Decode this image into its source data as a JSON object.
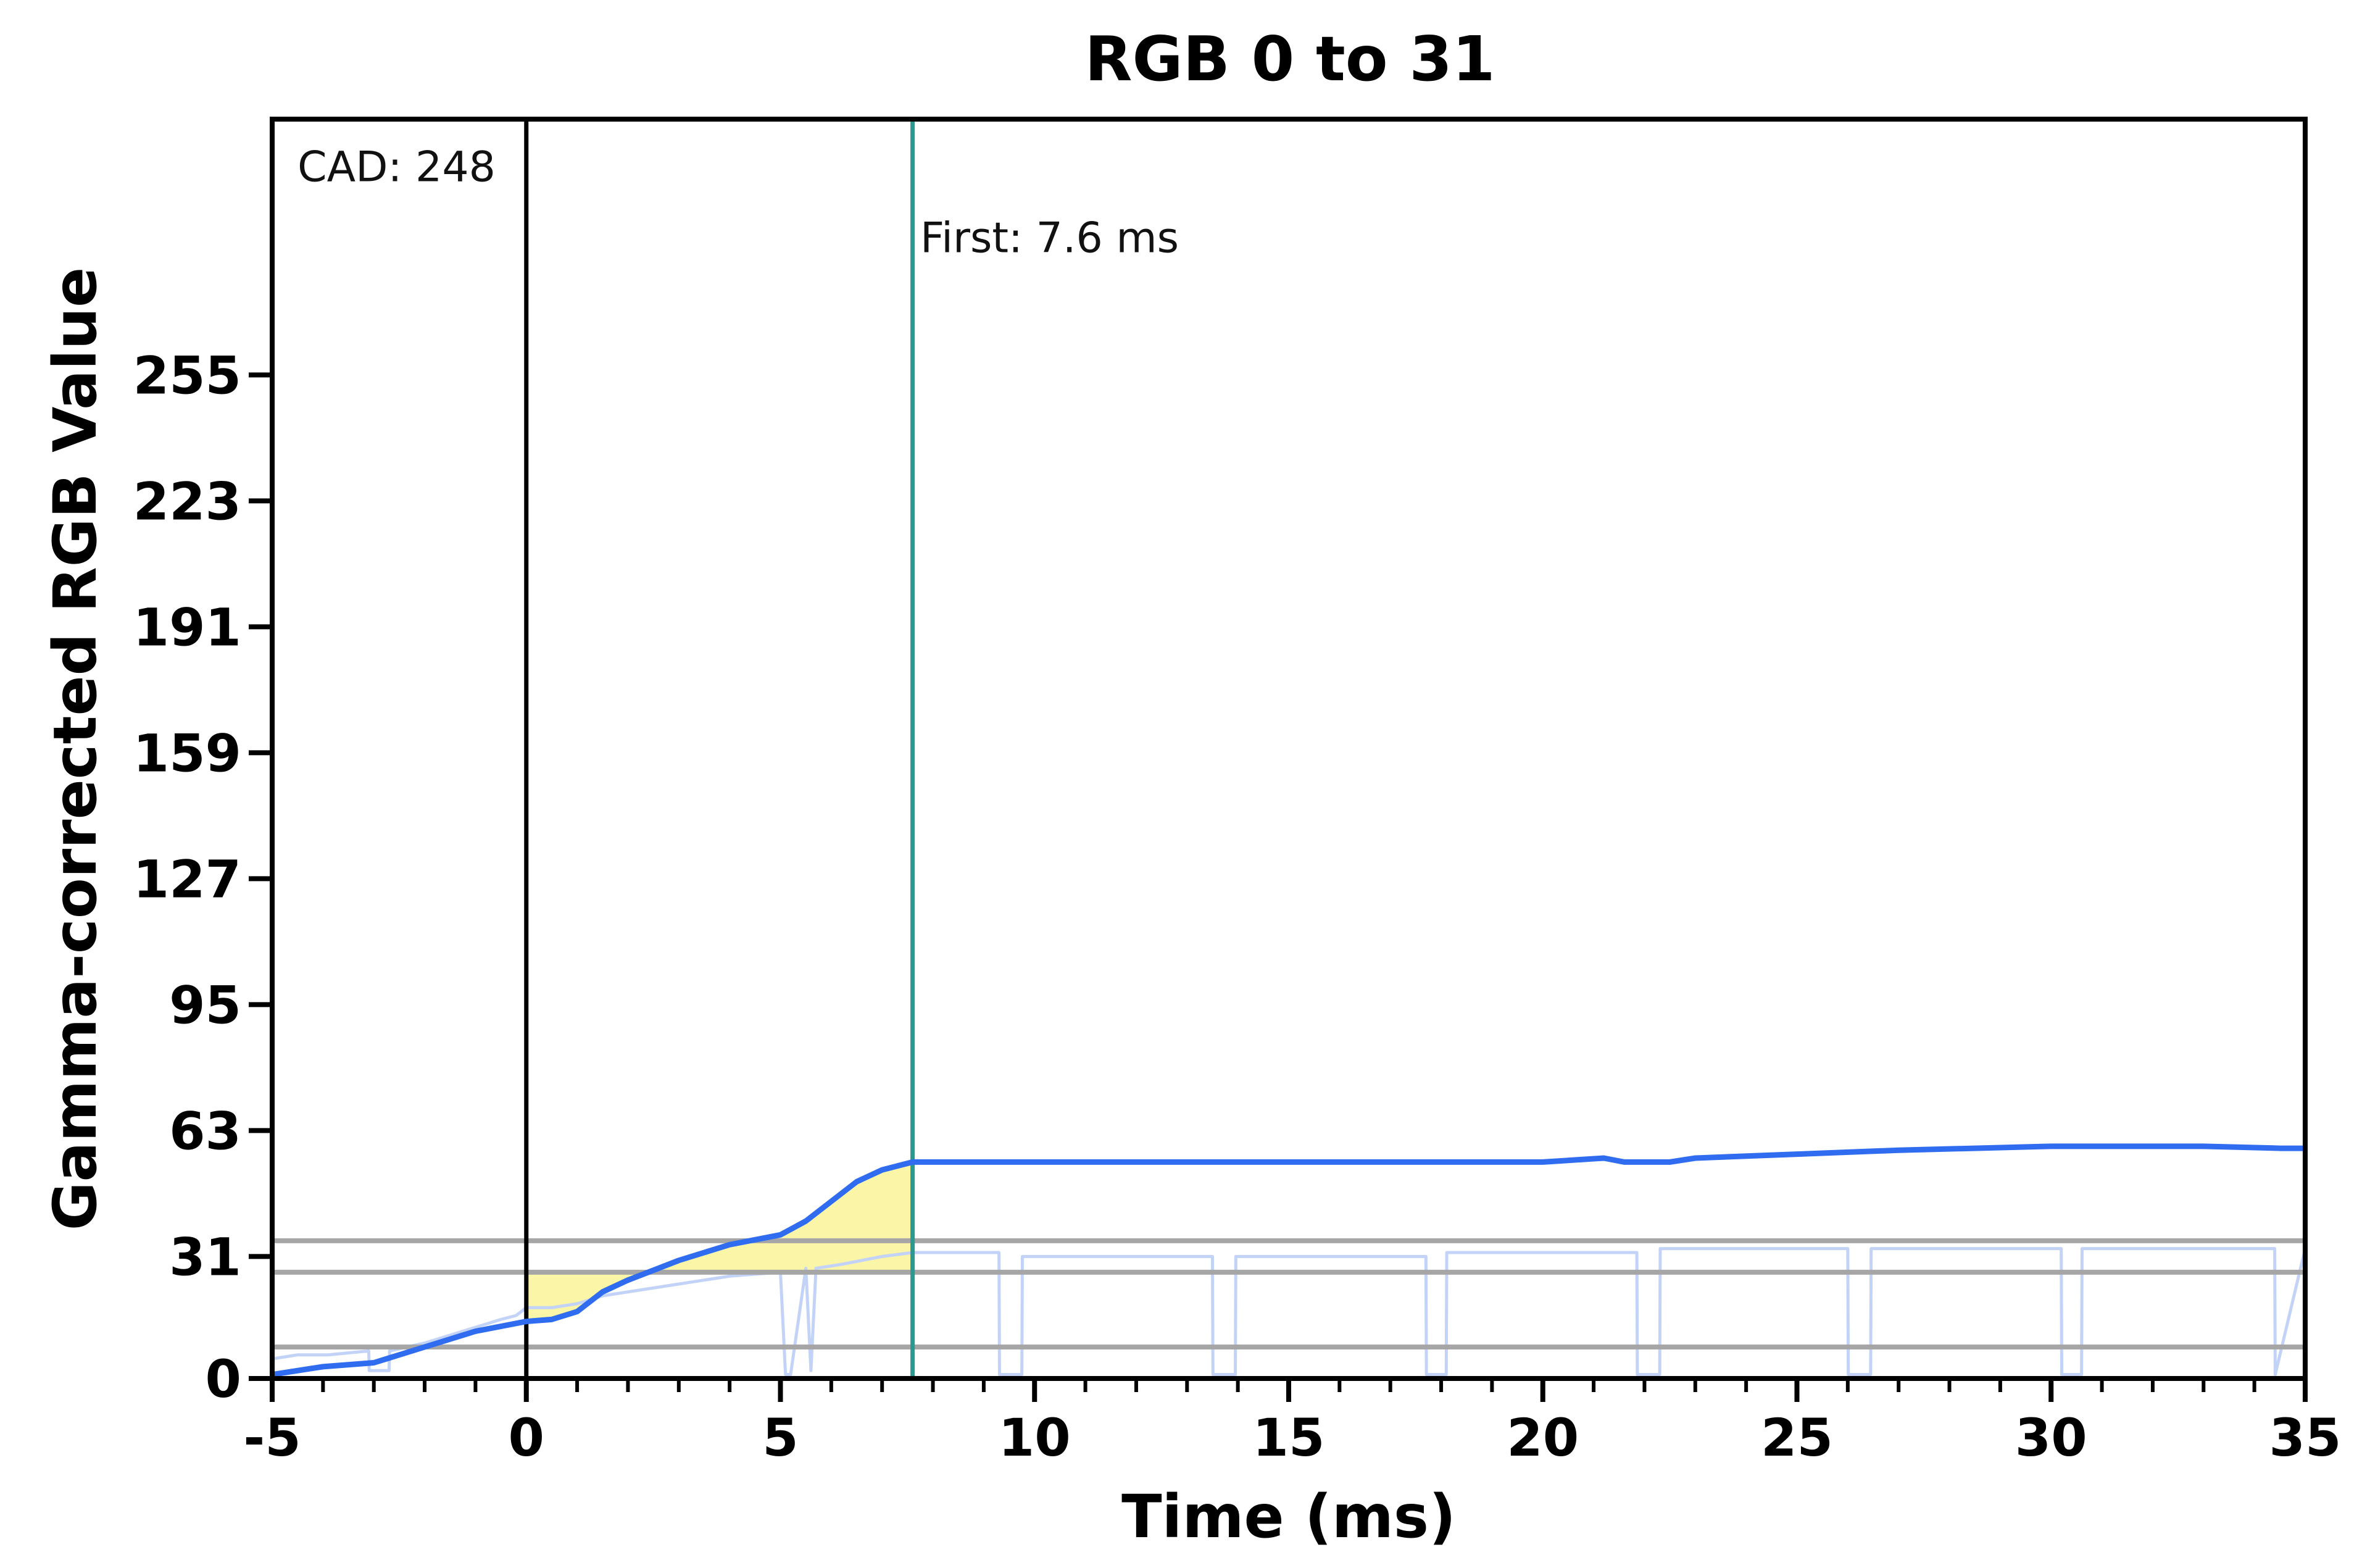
{
  "chart_data": {
    "type": "line",
    "title": "RGB 0 to 31",
    "xlabel": "Time (ms)",
    "ylabel": "Gamma-corrected RGB Value",
    "xlim": [
      -5,
      35
    ],
    "ylim": [
      0,
      320
    ],
    "x_ticks": [
      -5,
      0,
      5,
      10,
      15,
      20,
      25,
      30,
      35
    ],
    "y_ticks": [
      0,
      31,
      63,
      95,
      127,
      159,
      191,
      223,
      255
    ],
    "grid": false,
    "legend": "none",
    "reference_lines": {
      "horizontal": [
        8,
        27,
        35
      ],
      "start_marker_x": 0,
      "first_marker_x": 7.6
    },
    "annotations": [
      {
        "text": "CAD: 248",
        "x": -4.5,
        "y": 308
      },
      {
        "text": "First: 7.6 ms",
        "x": 7.75,
        "y": 290
      }
    ],
    "highlight_region": {
      "x_start": 0,
      "x_end": 7.6,
      "y_floor": 8,
      "y_ceiling": 27,
      "color": "#fbf5a8"
    },
    "series": [
      {
        "role": "raw-signal",
        "color": "#c2d3f7",
        "x": [
          -5,
          -4.5,
          -3.9,
          -3.1,
          -3.09,
          -2.7,
          -2.69,
          -2,
          -1.5,
          -1,
          -0.5,
          -0.2,
          0,
          0.5,
          1,
          1.5,
          2,
          3,
          4,
          5,
          5.1,
          5.2,
          5.5,
          5.6,
          5.7,
          6.2,
          7,
          7.6,
          9.3,
          9.31,
          9.75,
          9.76,
          13.5,
          13.51,
          13.95,
          13.96,
          17.7,
          17.71,
          18.1,
          18.11,
          21.85,
          21.86,
          22.3,
          22.31,
          26,
          26.01,
          26.45,
          26.46,
          30.2,
          30.21,
          30.6,
          30.61,
          34.4,
          34.41,
          35
        ],
        "y": [
          5,
          6,
          6,
          7,
          2,
          2,
          7,
          9,
          11,
          13,
          15,
          16,
          18,
          18,
          19,
          21,
          22,
          24,
          26,
          27,
          1,
          1,
          28,
          2,
          28,
          29,
          31,
          32,
          32,
          1,
          1,
          31,
          31,
          1,
          1,
          31,
          31,
          1,
          1,
          32,
          32,
          1,
          1,
          33,
          33,
          1,
          1,
          33,
          33,
          1,
          1,
          33,
          33,
          1,
          33
        ]
      },
      {
        "role": "smoothed",
        "color": "#2f6cf0",
        "x": [
          -5,
          -4,
          -3,
          -2,
          -1,
          0,
          0.5,
          1,
          1.5,
          2,
          3,
          4,
          5,
          5.5,
          6,
          6.5,
          7,
          7.6,
          8,
          10,
          12,
          14,
          16,
          18,
          20,
          21.2,
          21.6,
          22.5,
          23,
          25,
          27,
          30,
          33,
          34.5,
          35
        ],
        "y": [
          1,
          3,
          4,
          8,
          12,
          14.5,
          15,
          17,
          22,
          25,
          30,
          34,
          36.5,
          40,
          45,
          50,
          53,
          55,
          55,
          55,
          55,
          55,
          55,
          55,
          55,
          56,
          55,
          55,
          56,
          57,
          58,
          59,
          59,
          58.5,
          58.5
        ]
      }
    ]
  }
}
